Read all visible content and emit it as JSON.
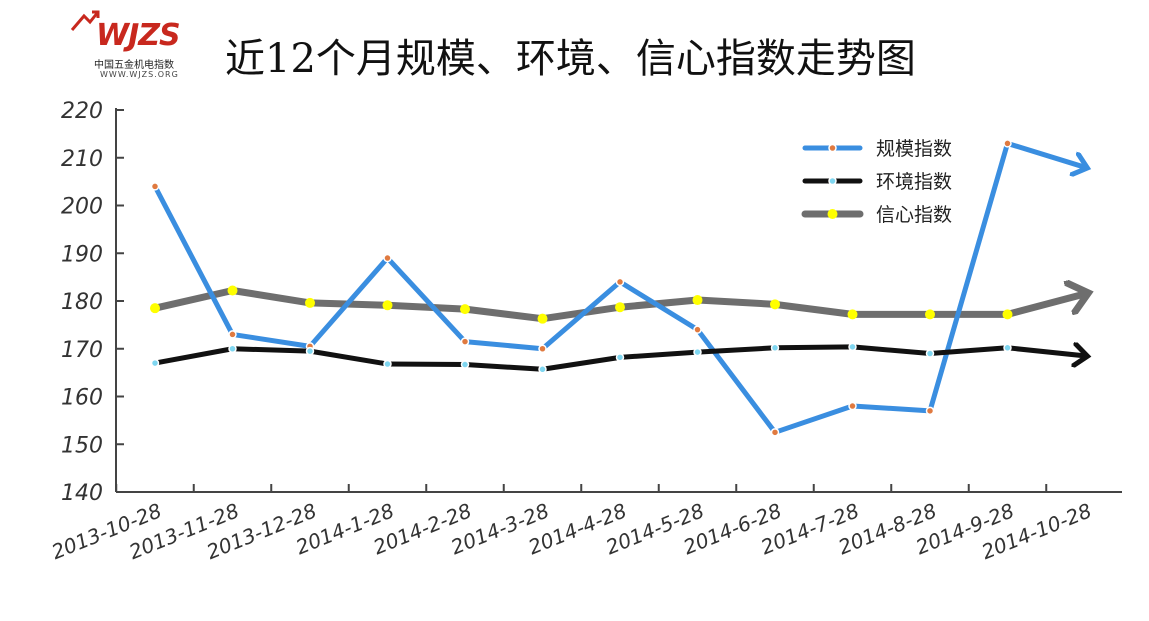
{
  "logo": {
    "mark": "WJZS",
    "cn": "中国五金机电指数",
    "url": "WWW.WJZS.ORG"
  },
  "chart_data": {
    "type": "line",
    "title": "近12个月规模、环境、信心指数走势图",
    "categories": [
      "2013-10-28",
      "2013-11-28",
      "2013-12-28",
      "2014-1-28",
      "2014-2-28",
      "2014-3-28",
      "2014-4-28",
      "2014-5-28",
      "2014-6-28",
      "2014-7-28",
      "2014-8-28",
      "2014-9-28",
      "2014-10-28"
    ],
    "ylim": [
      140,
      220
    ],
    "yticks": [
      "140",
      "150",
      "160",
      "170",
      "180",
      "190",
      "200",
      "210",
      "220"
    ],
    "legend_position": "top-right",
    "series": [
      {
        "name": "规模指数",
        "color": "#3a8ee0",
        "marker_color": "#e07a40",
        "values": [
          204,
          173,
          170.5,
          189,
          171.5,
          170,
          184,
          174,
          152.5,
          158,
          157,
          213,
          208
        ]
      },
      {
        "name": "环境指数",
        "color": "#111111",
        "marker_color": "#7fd6f0",
        "values": [
          167,
          170,
          169.5,
          166.8,
          166.7,
          165.7,
          168.2,
          169.3,
          170.2,
          170.4,
          169,
          170.2,
          168.5
        ]
      },
      {
        "name": "信心指数",
        "color": "#6e6e6e",
        "marker_color": "#ffff00",
        "values": [
          178.5,
          182.2,
          179.6,
          179.1,
          178.3,
          176.3,
          178.7,
          180.2,
          179.3,
          177.2,
          177.2,
          177.2,
          181.5
        ]
      }
    ]
  }
}
